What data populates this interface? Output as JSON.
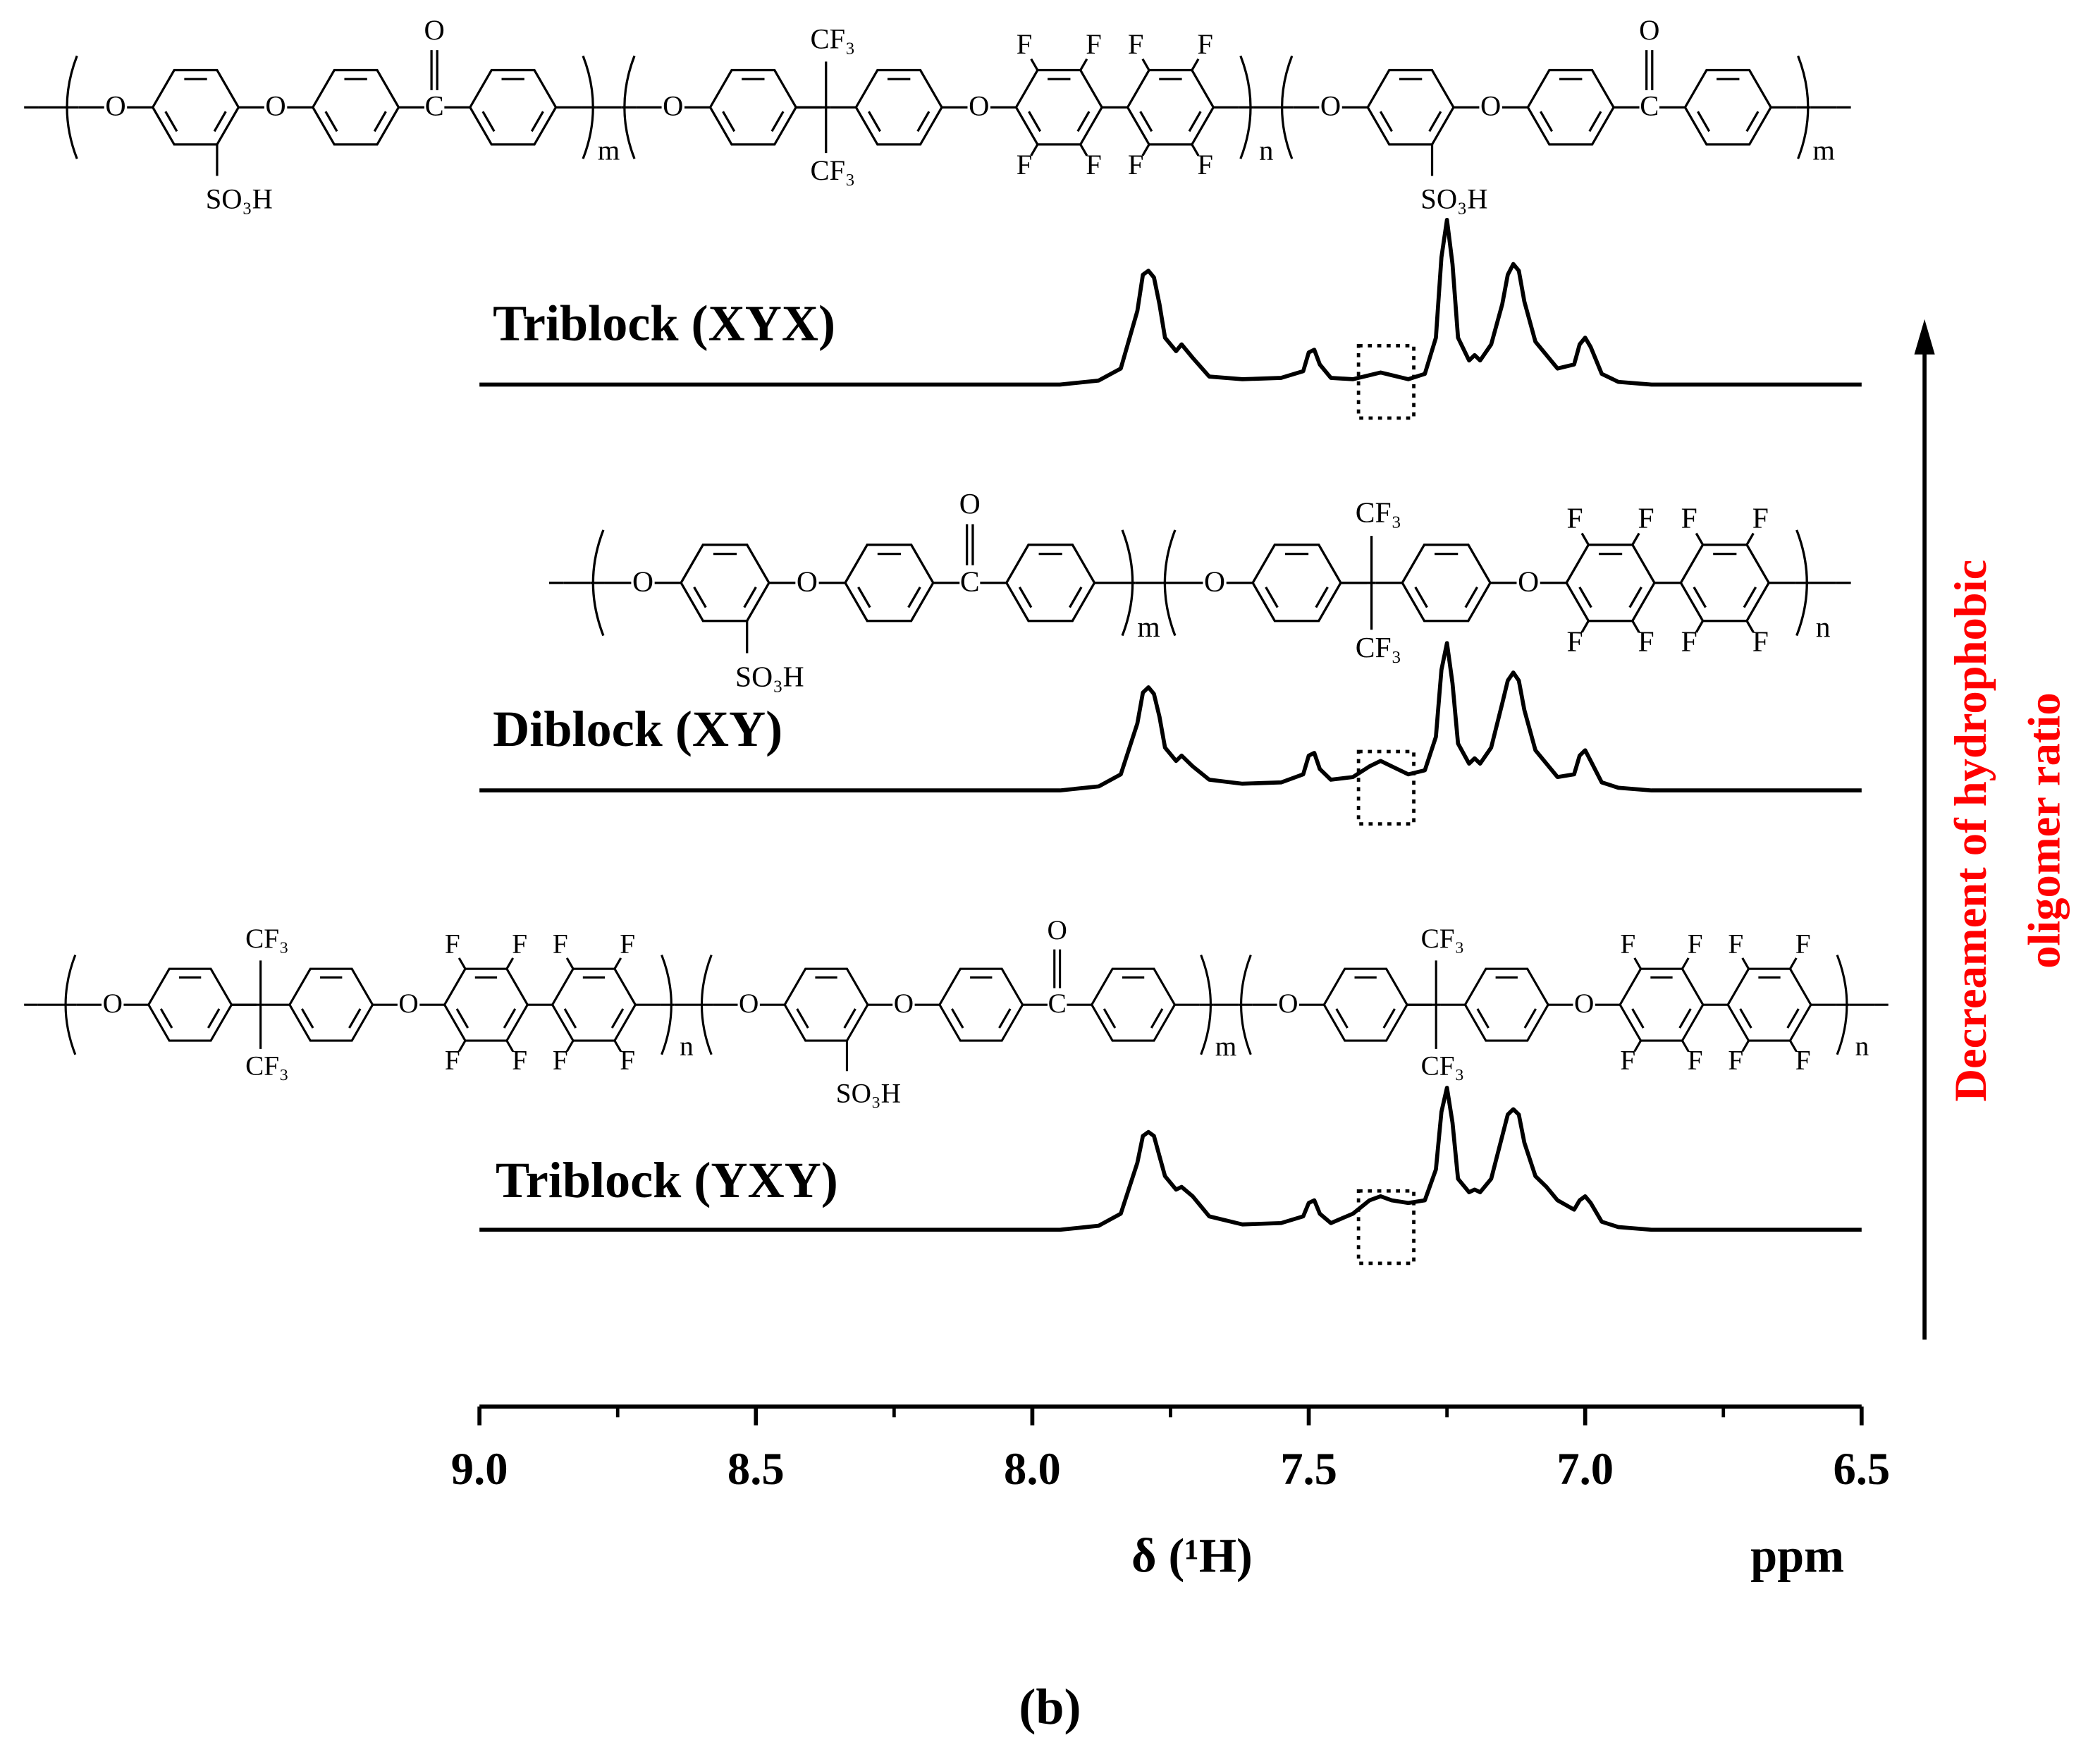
{
  "chart_data": {
    "type": "line",
    "x": [
      9.0,
      7.95,
      7.88,
      7.84,
      7.81,
      7.8,
      7.79,
      7.78,
      7.77,
      7.76,
      7.74,
      7.73,
      7.71,
      7.68,
      7.62,
      7.55,
      7.51,
      7.5,
      7.49,
      7.48,
      7.46,
      7.42,
      7.39,
      7.37,
      7.35,
      7.32,
      7.29,
      7.27,
      7.26,
      7.25,
      7.24,
      7.23,
      7.21,
      7.2,
      7.19,
      7.17,
      7.15,
      7.14,
      7.13,
      7.12,
      7.11,
      7.09,
      7.07,
      7.05,
      7.02,
      7.01,
      7.0,
      6.99,
      6.97,
      6.94,
      6.88,
      6.5
    ],
    "series": [
      {
        "name": "Triblock (XYX)",
        "color": "#000000",
        "values": [
          0,
          0,
          3,
          12,
          55,
          82,
          85,
          80,
          60,
          35,
          25,
          30,
          20,
          6,
          4,
          5,
          10,
          24,
          26,
          15,
          5,
          4,
          7,
          9,
          7,
          4,
          8,
          35,
          95,
          123,
          90,
          35,
          18,
          22,
          18,
          30,
          60,
          82,
          90,
          85,
          62,
          32,
          22,
          12,
          15,
          30,
          35,
          28,
          8,
          2,
          0,
          0
        ]
      },
      {
        "name": "Diblock (XY)",
        "color": "#000000",
        "values": [
          0,
          0,
          3,
          12,
          50,
          73,
          77,
          72,
          55,
          32,
          22,
          26,
          18,
          8,
          5,
          6,
          12,
          26,
          28,
          16,
          8,
          10,
          18,
          22,
          18,
          12,
          15,
          40,
          90,
          110,
          80,
          35,
          20,
          24,
          20,
          32,
          65,
          82,
          88,
          82,
          60,
          30,
          20,
          10,
          12,
          26,
          30,
          22,
          6,
          2,
          0,
          0
        ]
      },
      {
        "name": "Triblock (YXY)",
        "color": "#000000",
        "values": [
          0,
          0,
          3,
          12,
          50,
          70,
          73,
          70,
          55,
          40,
          30,
          32,
          25,
          10,
          4,
          5,
          10,
          20,
          22,
          12,
          5,
          12,
          22,
          25,
          22,
          20,
          22,
          45,
          88,
          106,
          80,
          38,
          28,
          30,
          28,
          38,
          70,
          86,
          90,
          86,
          65,
          40,
          32,
          22,
          15,
          22,
          25,
          20,
          6,
          2,
          0,
          0
        ]
      }
    ],
    "xlim": [
      9.0,
      6.5
    ],
    "xticks": [
      {
        "value": 9,
        "label": "9.0"
      },
      8.5,
      {
        "value": 8,
        "label": "8.0"
      },
      7.5,
      {
        "value": 7,
        "label": "7.0"
      },
      6.5
    ],
    "xminorticks": [
      8.75,
      8.25,
      7.75,
      7.25,
      6.75
    ],
    "xlabel": "δ (¹H)",
    "x_unit": "ppm",
    "highlight_region": [
      7.41,
      7.31
    ],
    "annotation": [
      "Decreament of hydrophobic",
      "oligomer ratio"
    ],
    "annotation_color": "#ff0000",
    "caption": "(b)"
  },
  "structure_labels": {
    "O": "O",
    "C": "C",
    "F": "F",
    "CF3": "CF₃",
    "SO3H": "SO₃H",
    "m": "m",
    "n": "n"
  }
}
